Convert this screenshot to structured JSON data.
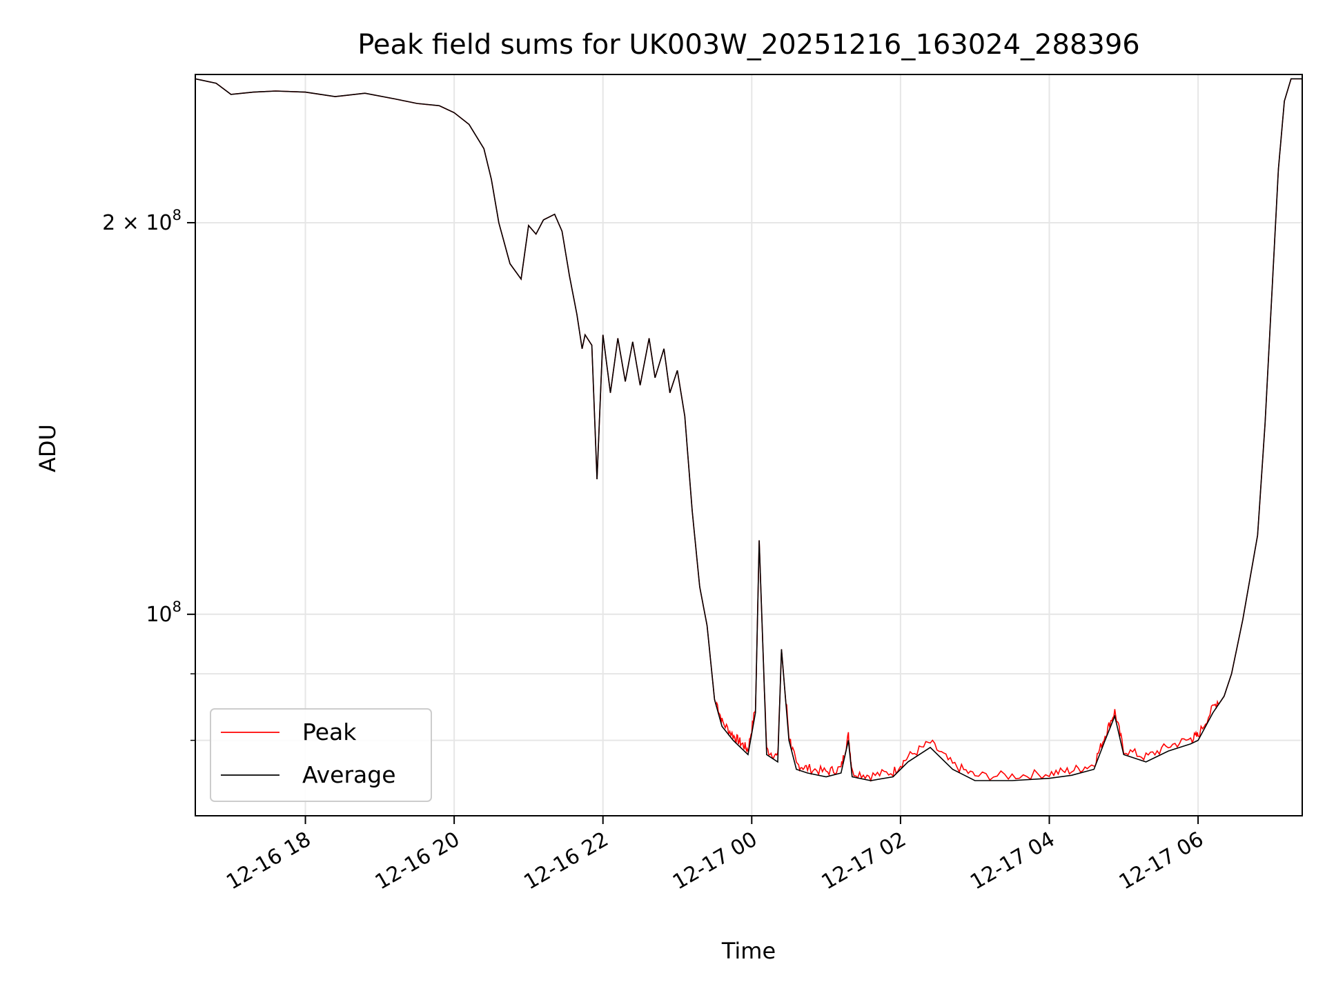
{
  "chart_data": {
    "type": "line",
    "title": "Peak field sums for UK003W_20251216_163024_288396",
    "xlabel": "Time",
    "ylabel": "ADU",
    "y_scale": "log",
    "ylim": [
      70000000,
      260000000
    ],
    "xlim": [
      16.52,
      31.4
    ],
    "x_unit": "hours since 2025-12-16 00:00",
    "x_ticks": [
      {
        "value": 18,
        "label": "12-16 18"
      },
      {
        "value": 20,
        "label": "12-16 20"
      },
      {
        "value": 22,
        "label": "12-16 22"
      },
      {
        "value": 24,
        "label": "12-17 00"
      },
      {
        "value": 26,
        "label": "12-17 02"
      },
      {
        "value": 28,
        "label": "12-17 04"
      },
      {
        "value": 30,
        "label": "12-17 06"
      }
    ],
    "y_ticks": [
      {
        "value": 100000000,
        "label": "10",
        "exp": "8"
      },
      {
        "value": 200000000,
        "label": "2 × 10",
        "exp": "8"
      }
    ],
    "y_minor_ticks": [
      80000000,
      90000000
    ],
    "grid": true,
    "legend_position": "lower-left",
    "series": [
      {
        "name": "Peak",
        "color": "#ff0000"
      },
      {
        "name": "Average",
        "color": "#000000"
      }
    ],
    "points": [
      [
        16.52,
        258000000
      ],
      [
        16.8,
        256000000
      ],
      [
        17.0,
        251000000
      ],
      [
        17.3,
        252000000
      ],
      [
        17.6,
        252500000
      ],
      [
        18.0,
        252000000
      ],
      [
        18.4,
        250000000
      ],
      [
        18.8,
        251500000
      ],
      [
        19.2,
        249000000
      ],
      [
        19.5,
        247000000
      ],
      [
        19.8,
        246000000
      ],
      [
        20.0,
        243000000
      ],
      [
        20.2,
        238000000
      ],
      [
        20.4,
        228000000
      ],
      [
        20.5,
        216000000
      ],
      [
        20.6,
        200000000
      ],
      [
        20.75,
        186000000
      ],
      [
        20.9,
        181000000
      ],
      [
        21.0,
        199000000
      ],
      [
        21.1,
        196000000
      ],
      [
        21.2,
        201000000
      ],
      [
        21.35,
        203000000
      ],
      [
        21.45,
        197000000
      ],
      [
        21.55,
        182000000
      ],
      [
        21.65,
        170000000
      ],
      [
        21.72,
        160000000
      ],
      [
        21.76,
        164000000
      ],
      [
        21.85,
        161000000
      ],
      [
        21.92,
        127000000
      ],
      [
        22.0,
        164000000
      ],
      [
        22.1,
        148000000
      ],
      [
        22.2,
        163000000
      ],
      [
        22.3,
        151000000
      ],
      [
        22.4,
        162000000
      ],
      [
        22.5,
        150000000
      ],
      [
        22.62,
        163000000
      ],
      [
        22.7,
        152000000
      ],
      [
        22.82,
        160000000
      ],
      [
        22.9,
        148000000
      ],
      [
        23.0,
        154000000
      ],
      [
        23.1,
        142000000
      ],
      [
        23.2,
        120000000
      ],
      [
        23.3,
        105000000
      ],
      [
        23.4,
        98000000
      ],
      [
        23.5,
        86000000
      ],
      [
        23.6,
        82000000
      ],
      [
        23.75,
        80000000
      ],
      [
        23.85,
        79000000
      ],
      [
        23.95,
        78000000
      ],
      [
        24.05,
        84000000
      ],
      [
        24.1,
        114000000
      ],
      [
        24.2,
        78000000
      ],
      [
        24.35,
        77000000
      ],
      [
        24.4,
        94000000
      ],
      [
        24.5,
        80000000
      ],
      [
        24.6,
        76000000
      ],
      [
        24.75,
        75500000
      ],
      [
        25.0,
        75000000
      ],
      [
        25.2,
        75500000
      ],
      [
        25.3,
        80000000
      ],
      [
        25.35,
        75000000
      ],
      [
        25.6,
        74500000
      ],
      [
        25.9,
        75000000
      ],
      [
        26.1,
        77000000
      ],
      [
        26.4,
        79000000
      ],
      [
        26.7,
        76000000
      ],
      [
        27.0,
        74500000
      ],
      [
        27.5,
        74500000
      ],
      [
        28.0,
        74800000
      ],
      [
        28.3,
        75200000
      ],
      [
        28.6,
        76000000
      ],
      [
        28.75,
        80000000
      ],
      [
        28.88,
        83500000
      ],
      [
        29.0,
        78000000
      ],
      [
        29.3,
        77000000
      ],
      [
        29.6,
        78500000
      ],
      [
        29.9,
        79500000
      ],
      [
        30.0,
        80000000
      ],
      [
        30.2,
        84000000
      ],
      [
        30.35,
        86500000
      ],
      [
        30.45,
        90000000
      ],
      [
        30.6,
        99000000
      ],
      [
        30.8,
        115000000
      ],
      [
        30.9,
        140000000
      ],
      [
        31.0,
        180000000
      ],
      [
        31.08,
        220000000
      ],
      [
        31.16,
        248000000
      ],
      [
        31.25,
        258000000
      ],
      [
        31.4,
        258000000
      ]
    ]
  }
}
